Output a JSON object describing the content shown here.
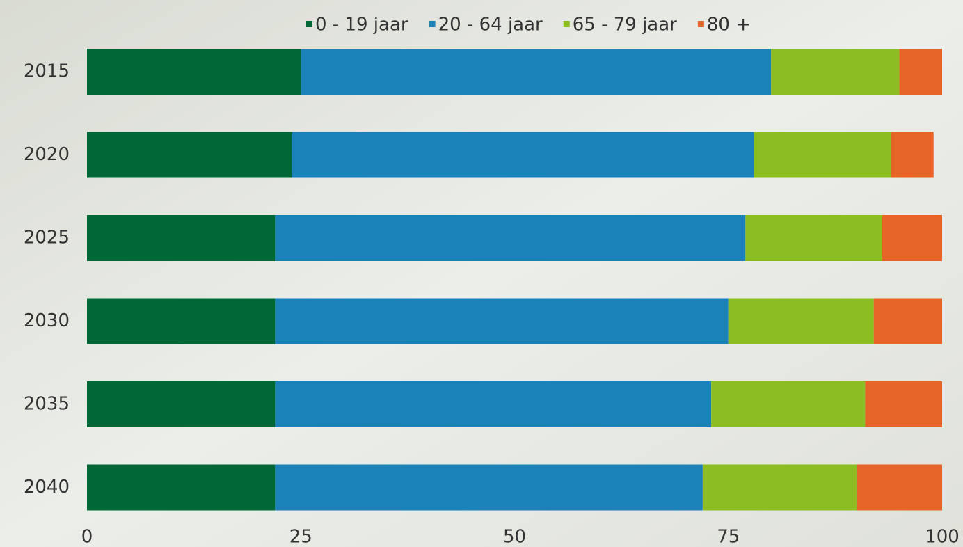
{
  "chart_data": {
    "type": "stacked-bar-horizontal",
    "categories": [
      "2015",
      "2020",
      "2025",
      "2030",
      "2035",
      "2040"
    ],
    "series": [
      {
        "name": "0 - 19 jaar",
        "color": "#006837",
        "values": [
          25,
          24,
          22,
          22,
          22,
          22
        ]
      },
      {
        "name": "20 - 64 jaar",
        "color": "#1a82b8",
        "values": [
          55,
          54,
          55,
          53,
          51,
          50
        ]
      },
      {
        "name": "65 - 79 jaar",
        "color": "#8cbd23",
        "values": [
          15,
          16,
          16,
          17,
          18,
          18
        ]
      },
      {
        "name": "80 +",
        "color": "#e56426",
        "values": [
          5,
          5,
          7,
          8,
          9,
          10
        ]
      }
    ],
    "xlim": [
      0,
      100
    ],
    "xticks": [
      0,
      25,
      50,
      75,
      100
    ],
    "legend": "top"
  }
}
